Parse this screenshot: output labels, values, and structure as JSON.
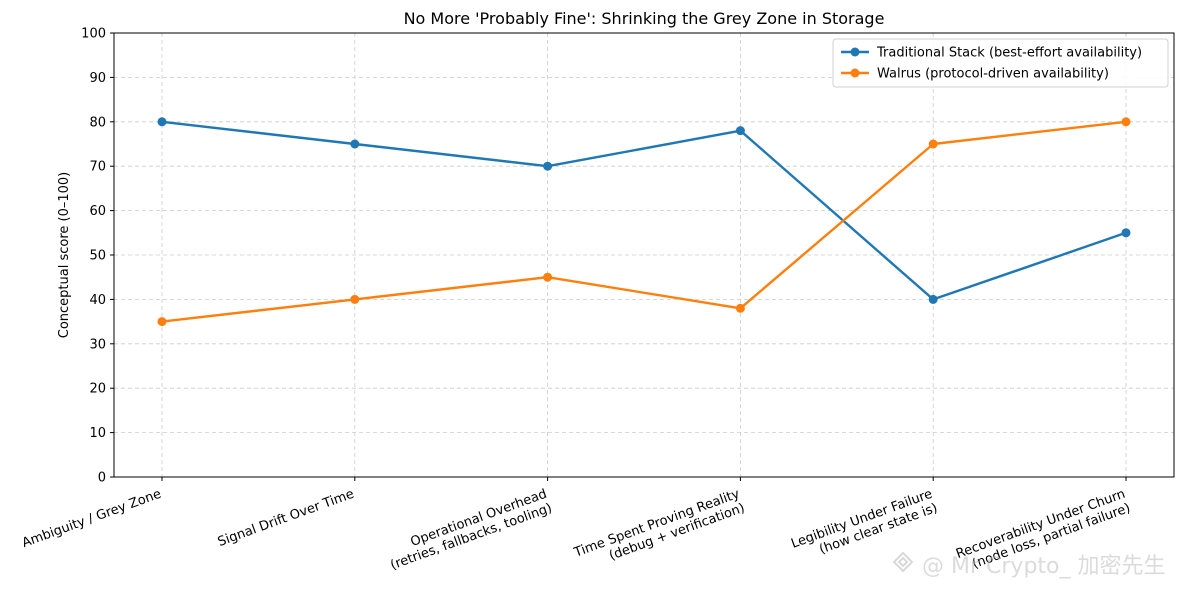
{
  "chart_data": {
    "type": "line",
    "title": "No More 'Probably Fine': Shrinking the Grey Zone in Storage",
    "xlabel": "",
    "ylabel": "Conceptual score (0–100)",
    "ylim": [
      0,
      100
    ],
    "yticks": [
      0,
      10,
      20,
      30,
      40,
      50,
      60,
      70,
      80,
      90,
      100
    ],
    "grid": true,
    "legend_position": "top-right",
    "categories": [
      [
        "Ambiguity / Grey Zone"
      ],
      [
        "Signal Drift Over Time"
      ],
      [
        "Operational Overhead",
        "(retries, fallbacks, tooling)"
      ],
      [
        "Time Spent Proving Reality",
        "(debug + verification)"
      ],
      [
        "Legibility Under Failure",
        "(how clear state is)"
      ],
      [
        "Recoverability Under Churn",
        "(node loss, partial failure)"
      ]
    ],
    "series": [
      {
        "name": "Traditional Stack (best-effort availability)",
        "color": "#1f77b4",
        "values": [
          80,
          75,
          70,
          78,
          40,
          55
        ]
      },
      {
        "name": "Walrus (protocol-driven availability)",
        "color": "#ff7f0e",
        "values": [
          35,
          40,
          45,
          38,
          75,
          80
        ]
      }
    ]
  },
  "watermark": {
    "text": "@ Mr Crypto_ 加密先生"
  }
}
